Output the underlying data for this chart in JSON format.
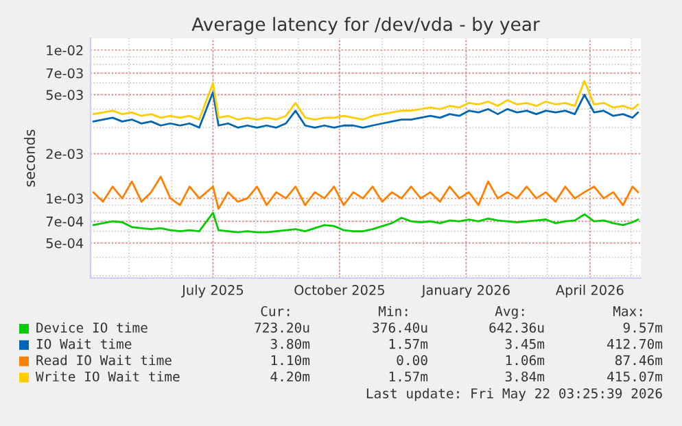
{
  "chart_data": {
    "type": "line",
    "title": "Average latency for /dev/vda - by year",
    "ylabel": "seconds",
    "x": [
      "2025-04-05",
      "2025-04-12",
      "2025-04-19",
      "2025-04-26",
      "2025-05-03",
      "2025-05-10",
      "2025-05-17",
      "2025-05-24",
      "2025-05-31",
      "2025-06-07",
      "2025-06-14",
      "2025-06-21",
      "2025-07-01",
      "2025-07-05",
      "2025-07-12",
      "2025-07-19",
      "2025-07-26",
      "2025-08-02",
      "2025-08-09",
      "2025-08-16",
      "2025-08-23",
      "2025-08-30",
      "2025-09-06",
      "2025-09-13",
      "2025-09-20",
      "2025-09-27",
      "2025-10-04",
      "2025-10-11",
      "2025-10-18",
      "2025-10-25",
      "2025-11-01",
      "2025-11-08",
      "2025-11-15",
      "2025-11-22",
      "2025-11-29",
      "2025-12-06",
      "2025-12-13",
      "2025-12-20",
      "2025-12-27",
      "2026-01-03",
      "2026-01-10",
      "2026-01-17",
      "2026-01-24",
      "2026-01-31",
      "2026-02-07",
      "2026-02-14",
      "2026-02-21",
      "2026-02-28",
      "2026-03-07",
      "2026-03-14",
      "2026-03-21",
      "2026-03-28",
      "2026-04-04",
      "2026-04-11",
      "2026-04-18",
      "2026-04-25",
      "2026-05-02",
      "2026-05-06"
    ],
    "series": [
      {
        "name": "Device IO time",
        "color": "#00cc00",
        "values": [
          0.00066,
          0.00068,
          0.0007,
          0.00069,
          0.00064,
          0.00063,
          0.00062,
          0.00063,
          0.00061,
          0.0006,
          0.00061,
          0.0006,
          0.0008,
          0.00061,
          0.0006,
          0.00059,
          0.0006,
          0.00059,
          0.00059,
          0.0006,
          0.00061,
          0.00062,
          0.0006,
          0.00063,
          0.00066,
          0.00065,
          0.00061,
          0.0006,
          0.0006,
          0.00062,
          0.00065,
          0.00068,
          0.00074,
          0.0007,
          0.00069,
          0.0007,
          0.00068,
          0.00071,
          0.0007,
          0.00072,
          0.0007,
          0.00073,
          0.00071,
          0.0007,
          0.00069,
          0.0007,
          0.00071,
          0.00072,
          0.00068,
          0.0007,
          0.00071,
          0.00078,
          0.0007,
          0.00071,
          0.00068,
          0.00066,
          0.00069,
          0.00072
        ]
      },
      {
        "name": "IO Wait time",
        "color": "#0066b3",
        "values": [
          0.0033,
          0.0034,
          0.0035,
          0.0033,
          0.0034,
          0.0032,
          0.0033,
          0.0031,
          0.0032,
          0.0031,
          0.0032,
          0.003,
          0.0052,
          0.0031,
          0.0032,
          0.003,
          0.0031,
          0.003,
          0.0031,
          0.003,
          0.0032,
          0.0039,
          0.0031,
          0.003,
          0.0031,
          0.003,
          0.0031,
          0.0031,
          0.003,
          0.0031,
          0.0032,
          0.0033,
          0.0034,
          0.0034,
          0.0035,
          0.0036,
          0.0035,
          0.0037,
          0.0036,
          0.0039,
          0.0038,
          0.004,
          0.0037,
          0.004,
          0.0038,
          0.0039,
          0.0037,
          0.0039,
          0.0038,
          0.0039,
          0.0037,
          0.005,
          0.0038,
          0.0039,
          0.0036,
          0.0037,
          0.0035,
          0.0038
        ]
      },
      {
        "name": "Read IO Wait time",
        "color": "#ff8000",
        "values": [
          0.0011,
          0.00095,
          0.0012,
          0.001,
          0.0013,
          0.00095,
          0.0011,
          0.0014,
          0.001,
          0.0009,
          0.0012,
          0.001,
          0.0012,
          0.00085,
          0.0011,
          0.00095,
          0.001,
          0.0012,
          0.0009,
          0.0011,
          0.001,
          0.0012,
          0.0009,
          0.0011,
          0.001,
          0.0012,
          0.0009,
          0.0011,
          0.001,
          0.0012,
          0.00095,
          0.0011,
          0.001,
          0.0012,
          0.001,
          0.0011,
          0.00095,
          0.0012,
          0.001,
          0.0011,
          0.0009,
          0.0013,
          0.001,
          0.0011,
          0.001,
          0.0012,
          0.001,
          0.0011,
          0.00095,
          0.0012,
          0.001,
          0.0011,
          0.0012,
          0.001,
          0.0011,
          0.0009,
          0.0012,
          0.0011
        ]
      },
      {
        "name": "Write IO Wait time",
        "color": "#ffcc00",
        "values": [
          0.0037,
          0.0038,
          0.0039,
          0.0037,
          0.0038,
          0.0036,
          0.0037,
          0.0035,
          0.0036,
          0.0035,
          0.0036,
          0.0034,
          0.006,
          0.0035,
          0.0036,
          0.0034,
          0.0035,
          0.0034,
          0.0035,
          0.0034,
          0.0036,
          0.0044,
          0.0035,
          0.0034,
          0.0035,
          0.0035,
          0.0036,
          0.0035,
          0.0034,
          0.0036,
          0.0037,
          0.0038,
          0.0039,
          0.0039,
          0.004,
          0.0041,
          0.004,
          0.0042,
          0.0041,
          0.0044,
          0.0043,
          0.0045,
          0.0042,
          0.0046,
          0.0043,
          0.0044,
          0.0042,
          0.0045,
          0.0043,
          0.0044,
          0.0042,
          0.0062,
          0.0043,
          0.0044,
          0.0041,
          0.0042,
          0.004,
          0.0043
        ]
      }
    ],
    "log": "y",
    "ylim": [
      0.00029,
      0.012
    ],
    "yticks": [
      {
        "value": 0.01,
        "label": "1e-02"
      },
      {
        "value": 0.007,
        "label": "7e-03"
      },
      {
        "value": 0.005,
        "label": "5e-03"
      },
      {
        "value": 0.002,
        "label": "2e-03"
      },
      {
        "value": 0.001,
        "label": "1e-03"
      },
      {
        "value": 0.0007,
        "label": "7e-04"
      },
      {
        "value": 0.0005,
        "label": "5e-04"
      }
    ],
    "xlim": [
      "2025-04-03",
      "2026-05-08"
    ],
    "xticks": [
      {
        "value": "2025-07-01",
        "label": "July 2025"
      },
      {
        "value": "2025-10-01",
        "label": "October 2025"
      },
      {
        "value": "2026-01-01",
        "label": "January 2026"
      },
      {
        "value": "2026-04-01",
        "label": "April 2026"
      }
    ],
    "grid": true,
    "legend": "bottom",
    "annotations": [
      "Cur:",
      "Min:",
      "Avg:",
      "Max:",
      "723.20u",
      "376.40u",
      "642.36u",
      "9.57m",
      "3.80m",
      "1.57m",
      "3.45m",
      "412.70m",
      "1.10m",
      "0.00",
      "1.06m",
      "87.46m",
      "4.20m",
      "1.57m",
      "3.84m",
      "415.07m",
      "Last update: Fri May 22 03:25:39 2026"
    ]
  }
}
